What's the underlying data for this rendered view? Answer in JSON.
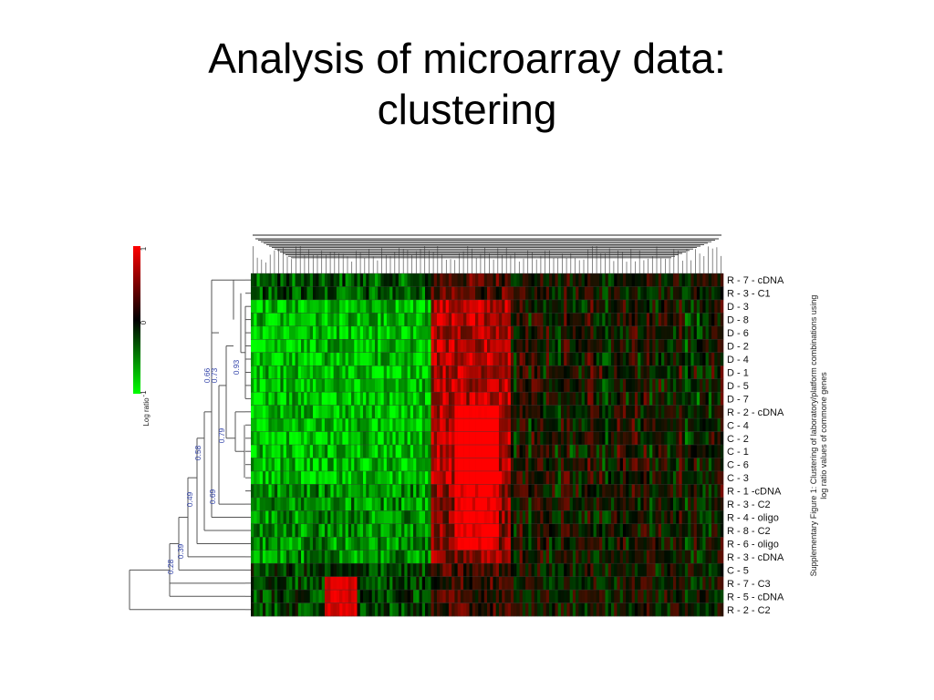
{
  "slide": {
    "title_line1": "Analysis of microarray data:",
    "title_line2": "clustering"
  },
  "legend": {
    "title": "Log ratio",
    "ticks": [
      "1",
      "0",
      "-1"
    ],
    "colors": {
      "high": "#ff0000",
      "mid": "#000000",
      "low": "#00ff00"
    }
  },
  "caption": {
    "line1": "Supplementary Figure 1: Clustering of laboratory/platform combinations using",
    "line2": "log ratio values of commone genes"
  },
  "rows": [
    "R - 7 - cDNA",
    "R - 3 - C1",
    "D - 3",
    "D - 8",
    "D - 6",
    "D - 2",
    "D - 4",
    "D - 1",
    "D - 5",
    "D - 7",
    "R - 2 - cDNA",
    "C - 4",
    "C - 2",
    "C - 1",
    "C - 6",
    "C - 3",
    "R - 1 -cDNA",
    "R - 3 - C2",
    "R - 4 - oligo",
    "R - 8 - C2",
    "R - 6 - oligo",
    "R - 3 - cDNA",
    "C - 5",
    "R - 7 - C3",
    "R - 5 - cDNA",
    "R - 2 - C2"
  ],
  "node_values": [
    "0.66",
    "0.73",
    "0.93",
    "0.79",
    "0.58",
    "0.69",
    "0.49",
    "0.39",
    "0.28"
  ]
}
